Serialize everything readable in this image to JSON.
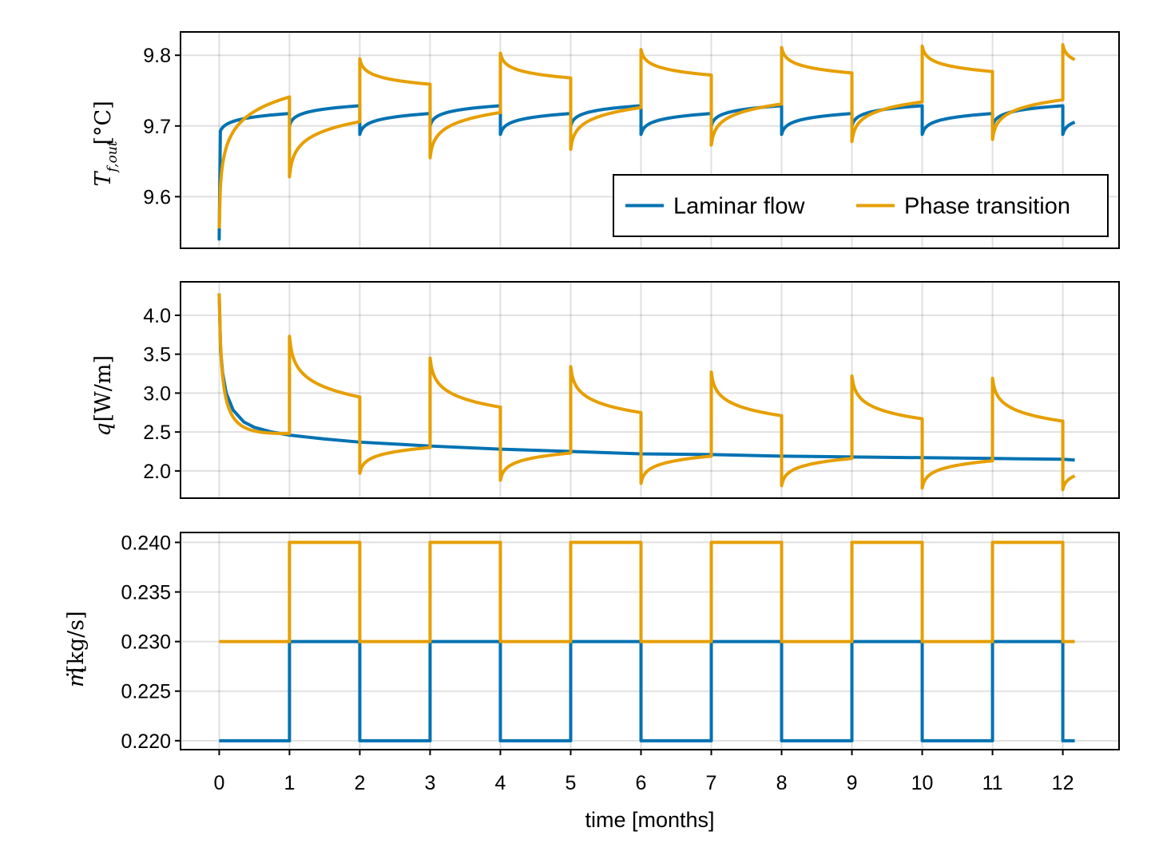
{
  "chart_data": [
    {
      "type": "line",
      "ylabel_parts": [
        "T",
        "f,out",
        "[°C]"
      ],
      "ylim": [
        9.527,
        9.833
      ],
      "xlim": [
        -0.55,
        12.8
      ],
      "yticks": [
        9.6,
        9.7,
        9.8
      ],
      "ytick_labels": [
        "9.6",
        "9.7",
        "9.8"
      ],
      "grid": true,
      "legend": {
        "position": "bottom-right",
        "entries": [
          "Laminar flow",
          "Phase transition"
        ]
      },
      "series": [
        {
          "name": "Laminar flow",
          "color": "#0072b2",
          "kind": "temp",
          "start": 9.54,
          "even": {
            "a": 9.688,
            "b": 0.0296
          },
          "odd": {
            "a": 9.7,
            "b": 0.0286
          }
        },
        {
          "name": "Phase transition",
          "color": "#e69f00",
          "kind": "temp",
          "start": 9.555,
          "low_months": [
            {
              "jump": 9.628,
              "end": 9.706
            },
            {
              "jump": 9.655,
              "end": 9.719
            },
            {
              "jump": 9.667,
              "end": 9.726
            },
            {
              "jump": 9.673,
              "end": 9.731
            },
            {
              "jump": 9.678,
              "end": 9.734
            },
            {
              "jump": 9.681,
              "end": 9.737
            }
          ],
          "high_months": [
            {
              "jump": 9.795,
              "end": 9.759
            },
            {
              "jump": 9.803,
              "end": 9.768
            },
            {
              "jump": 9.808,
              "end": 9.772
            },
            {
              "jump": 9.811,
              "end": 9.775
            },
            {
              "jump": 9.813,
              "end": 9.777
            },
            {
              "jump": 9.815,
              "end": 9.779
            }
          ]
        }
      ]
    },
    {
      "type": "line",
      "ylabel_parts": [
        "q",
        "[W/m]"
      ],
      "ylim": [
        1.65,
        4.43
      ],
      "xlim": [
        -0.55,
        12.8
      ],
      "yticks": [
        2.0,
        2.5,
        3.0,
        3.5,
        4.0
      ],
      "ytick_labels": [
        "2.0",
        "2.5",
        "3.0",
        "3.5",
        "4.0"
      ],
      "grid": true,
      "series": [
        {
          "name": "Laminar flow",
          "color": "#0072b2",
          "kind": "heat",
          "start": 4.28,
          "curve": [
            [
              0,
              4.28
            ],
            [
              0.02,
              3.55
            ],
            [
              0.05,
              3.25
            ],
            [
              0.1,
              3.0
            ],
            [
              0.2,
              2.78
            ],
            [
              0.35,
              2.63
            ],
            [
              0.5,
              2.56
            ],
            [
              0.75,
              2.5
            ],
            [
              1,
              2.46
            ],
            [
              1.5,
              2.41
            ],
            [
              2,
              2.37
            ],
            [
              3,
              2.32
            ],
            [
              4,
              2.28
            ],
            [
              5,
              2.25
            ],
            [
              6,
              2.22
            ],
            [
              7,
              2.21
            ],
            [
              8,
              2.19
            ],
            [
              9,
              2.18
            ],
            [
              10,
              2.17
            ],
            [
              11,
              2.16
            ],
            [
              12,
              2.15
            ],
            [
              12.17,
              2.14
            ]
          ]
        },
        {
          "name": "Phase transition",
          "color": "#e69f00",
          "kind": "heat",
          "start": 4.28,
          "first_month_end": 2.48,
          "high_months": [
            {
              "jump": 3.73,
              "end": 2.95
            },
            {
              "jump": 3.45,
              "end": 2.82
            },
            {
              "jump": 3.34,
              "end": 2.75
            },
            {
              "jump": 3.27,
              "end": 2.71
            },
            {
              "jump": 3.22,
              "end": 2.67
            },
            {
              "jump": 3.19,
              "end": 2.64
            }
          ],
          "low_months": [
            {
              "jump": 1.97,
              "end": 2.3
            },
            {
              "jump": 1.88,
              "end": 2.23
            },
            {
              "jump": 1.84,
              "end": 2.19
            },
            {
              "jump": 1.81,
              "end": 2.16
            },
            {
              "jump": 1.78,
              "end": 2.13
            },
            {
              "jump": 1.76,
              "end": 2.06
            }
          ]
        }
      ]
    },
    {
      "type": "line",
      "ylabel_parts": [
        "ṁ",
        "[kg/s]"
      ],
      "ylim": [
        0.2191,
        0.241
      ],
      "xlim": [
        -0.55,
        12.8
      ],
      "yticks": [
        0.22,
        0.225,
        0.23,
        0.235,
        0.24
      ],
      "ytick_labels": [
        "0.220",
        "0.225",
        "0.230",
        "0.235",
        "0.240"
      ],
      "xticks": [
        0,
        1,
        2,
        3,
        4,
        5,
        6,
        7,
        8,
        9,
        10,
        11,
        12
      ],
      "xtick_labels": [
        "0",
        "1",
        "2",
        "3",
        "4",
        "5",
        "6",
        "7",
        "8",
        "9",
        "10",
        "11",
        "12"
      ],
      "xlabel": "time [months]",
      "grid": true,
      "series": [
        {
          "name": "Laminar flow",
          "color": "#0072b2",
          "kind": "step",
          "low": 0.22,
          "high": 0.23,
          "start_high": false
        },
        {
          "name": "Phase transition",
          "color": "#e69f00",
          "kind": "step",
          "low": 0.23,
          "high": 0.24,
          "start_high": false
        }
      ],
      "x_end": 12.17
    }
  ]
}
